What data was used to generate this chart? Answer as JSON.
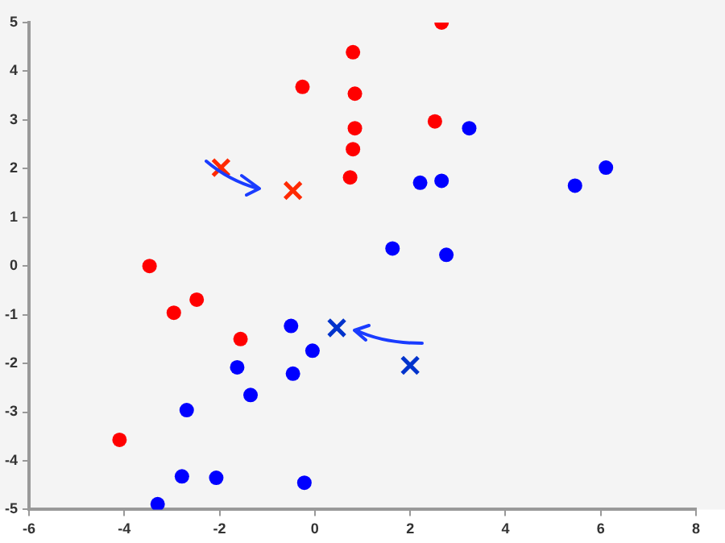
{
  "chart_data": {
    "type": "scatter",
    "xlim": [
      -6,
      8
    ],
    "ylim": [
      -5,
      5
    ],
    "xticks": [
      -6,
      -4,
      -2,
      0,
      2,
      4,
      6,
      8
    ],
    "yticks": [
      -5,
      -4,
      -3,
      -2,
      -1,
      0,
      1,
      2,
      3,
      4,
      5
    ],
    "grid": false,
    "legend": false,
    "series": [
      {
        "color": "#ff0000",
        "marker": "circle",
        "x": [
          2.66,
          0.8,
          0.84,
          -0.26,
          0.84,
          0.8,
          0.74,
          2.52,
          -3.47,
          -2.96,
          -2.48,
          -1.56,
          -4.1
        ],
        "values": [
          5.0,
          4.39,
          3.54,
          3.68,
          2.83,
          2.4,
          1.82,
          2.97,
          0.0,
          -0.96,
          -0.69,
          -1.5,
          -3.57
        ]
      },
      {
        "color": "#ff2a00",
        "marker": "cross",
        "x": [
          -1.97,
          -0.46
        ],
        "values": [
          2.02,
          1.55
        ]
      },
      {
        "color": "#0000ff",
        "marker": "circle",
        "x": [
          3.24,
          2.21,
          2.66,
          1.63,
          2.76,
          5.46,
          6.11,
          -0.5,
          -0.05,
          -0.46,
          -1.63,
          -1.35,
          -2.69,
          -2.79,
          -2.07,
          -3.3,
          -0.22
        ],
        "values": [
          2.83,
          1.71,
          1.75,
          0.36,
          0.23,
          1.65,
          2.02,
          -1.23,
          -1.74,
          -2.21,
          -2.08,
          -2.65,
          -2.96,
          -4.32,
          -4.35,
          -4.89,
          -4.45
        ]
      },
      {
        "color": "#0033cc",
        "marker": "cross",
        "x": [
          0.46,
          2.0
        ],
        "values": [
          -1.27,
          -2.04
        ]
      }
    ]
  }
}
